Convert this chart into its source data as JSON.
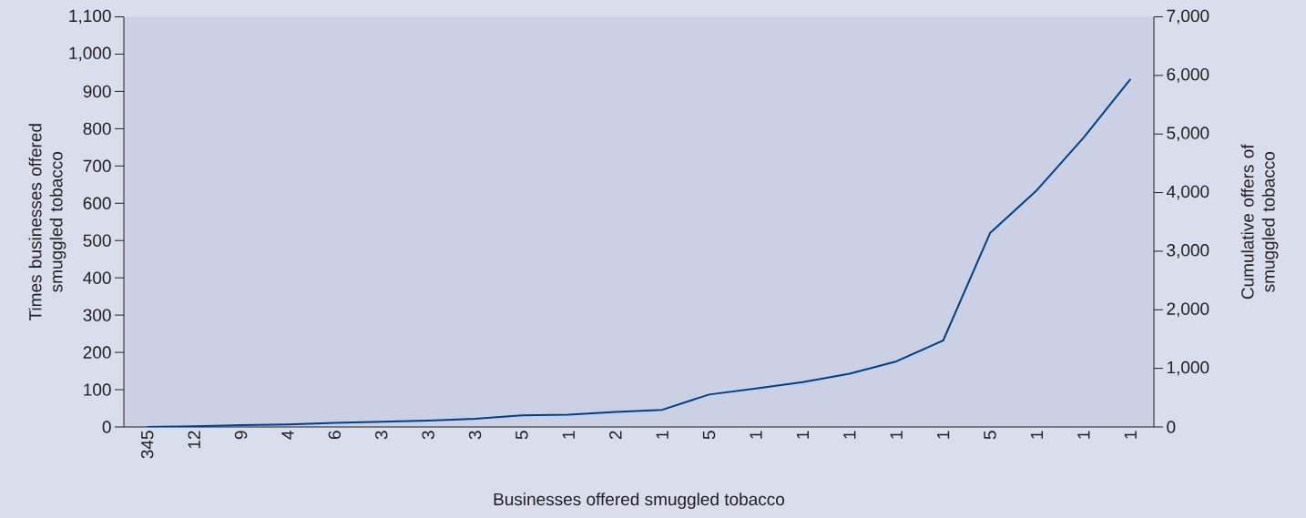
{
  "chart_data": {
    "type": "line",
    "xlabel": "Businesses offered smuggled tobacco",
    "ylabel": "Times businesses offered smuggled tobacco",
    "y2label": "Cumulative offers of smuggled tobacco",
    "categories": [
      "345",
      "12",
      "9",
      "4",
      "6",
      "3",
      "3",
      "3",
      "5",
      "1",
      "2",
      "1",
      "5",
      "1",
      "1",
      "1",
      "1",
      "1",
      "5",
      "1",
      "1",
      "1"
    ],
    "series": [
      {
        "color": "#003f87",
        "values": [
          0,
          2,
          5,
          7,
          11,
          14,
          17,
          22,
          31,
          33,
          40,
          46,
          87,
          103,
          120,
          143,
          176,
          232,
          520,
          635,
          776,
          933
        ]
      }
    ],
    "ylim": [
      0,
      1100
    ],
    "yticks": [
      0,
      100,
      200,
      300,
      400,
      500,
      600,
      700,
      800,
      900,
      {
        "value": 1000,
        "label": "1,000"
      },
      {
        "value": 1100,
        "label": "1,100"
      }
    ],
    "y2lim": [
      0,
      7000
    ],
    "y2ticks": [
      0,
      {
        "value": 1000,
        "label": "1,000"
      },
      {
        "value": 2000,
        "label": "2,000"
      },
      {
        "value": 3000,
        "label": "3,000"
      },
      {
        "value": 4000,
        "label": "4,000"
      },
      {
        "value": 5000,
        "label": "5,000"
      },
      {
        "value": 6000,
        "label": "6,000"
      },
      {
        "value": 7000,
        "label": "7,000"
      }
    ]
  }
}
